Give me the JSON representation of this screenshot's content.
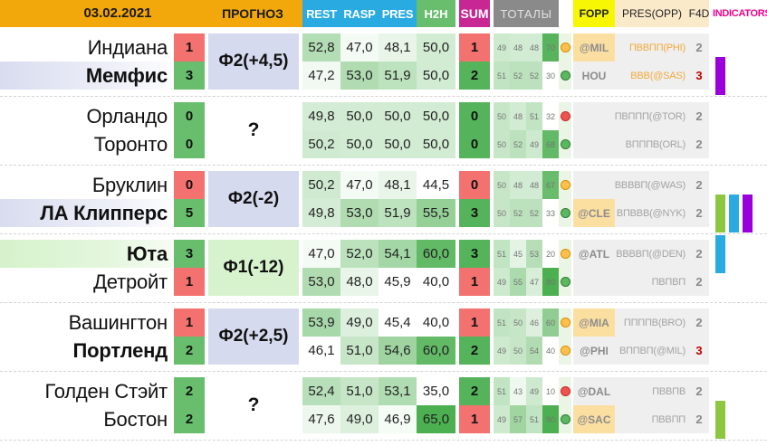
{
  "header": {
    "date": "03.02.2021",
    "forecast_label": "ПРОГНОЗ",
    "stat_columns": [
      "REST",
      "RASP",
      "PRES",
      "H2H"
    ],
    "sum_label": "SUM",
    "totals_label": "ТОТАЛЫ",
    "fopp_label": "FOPP",
    "pres_opp_label": "PRES(OPP)",
    "f4d_label": "F4D",
    "indicators_label": "INDICATORS"
  },
  "colors": {
    "headerYellow": "#F2A70A",
    "statCyan": "#29ABE2",
    "h2hGreen": "#69BE6E",
    "sumMagenta": "#C72693",
    "totalsGray": "#8A8A8A",
    "foppYellow": "#F7F704",
    "cream": "#FBEACA",
    "indMagenta": "#EC008C",
    "lavender": "#D6DAEE",
    "forecastGreen": "#D7F3CE",
    "panelGray": "#EFEFEF",
    "foppHl": "#FBDFA1",
    "circleStrip": "#EBF5E6",
    "badgeRed": "#F3716F",
    "badgeGreen": "#69BE6E",
    "sumRed": "#F3716F",
    "sumGreen": "#55B45B",
    "barGreen": "#8DC63F",
    "barCyan": "#29ABE2",
    "barPurple": "#9A00D9",
    "oppOrange": "#F2A93B"
  },
  "games": [
    {
      "forecast": "Ф2(+4,5)",
      "forecast_style": "lavender",
      "rows": [
        {
          "team": "Индиана",
          "bold": false,
          "name_bg": "none",
          "badge": "1",
          "badge_color": "red",
          "stats": [
            "52,8",
            "47,0",
            "48,1",
            "50,0"
          ],
          "sum": "1",
          "sum_color": "red",
          "totals": [
            49,
            48,
            48,
            70
          ],
          "circle": "orange",
          "fopp": "@MIL",
          "fopp_hl": true,
          "pres_opp": "ПВВПП(PHI)",
          "pres_opp_orange": true,
          "f4d": "2",
          "f4d_red": false,
          "bars": []
        },
        {
          "team": "Мемфис",
          "bold": true,
          "name_bg": "lavender",
          "badge": "3",
          "badge_color": "green",
          "stats": [
            "47,2",
            "53,0",
            "51,9",
            "50,0"
          ],
          "sum": "2",
          "sum_color": "green",
          "totals": [
            51,
            52,
            52,
            30
          ],
          "circle": "green",
          "fopp": "HOU",
          "fopp_hl": false,
          "pres_opp": "ВВВ(@SAS)",
          "pres_opp_orange": true,
          "f4d": "3",
          "f4d_red": true,
          "bars": [
            "purple"
          ]
        }
      ]
    },
    {
      "forecast": "?",
      "forecast_style": "plain",
      "rows": [
        {
          "team": "Орландо",
          "bold": false,
          "name_bg": "none",
          "badge": "0",
          "badge_color": "green",
          "stats": [
            "49,8",
            "50,0",
            "50,0",
            "50,0"
          ],
          "sum": "0",
          "sum_color": "green",
          "totals": [
            50,
            48,
            51,
            32
          ],
          "circle": "red",
          "fopp": "",
          "fopp_hl": false,
          "pres_opp": "ПВППП(@TOR)",
          "pres_opp_orange": false,
          "f4d": "2",
          "f4d_red": false,
          "bars": []
        },
        {
          "team": "Торонто",
          "bold": false,
          "name_bg": "none",
          "badge": "0",
          "badge_color": "green",
          "stats": [
            "50,2",
            "50,0",
            "50,0",
            "50,0"
          ],
          "sum": "0",
          "sum_color": "green",
          "totals": [
            50,
            52,
            49,
            68
          ],
          "circle": "green",
          "fopp": "",
          "fopp_hl": false,
          "pres_opp": "ВПППВ(ORL)",
          "pres_opp_orange": false,
          "f4d": "2",
          "f4d_red": false,
          "bars": []
        }
      ]
    },
    {
      "forecast": "Ф2(-2)",
      "forecast_style": "lavender",
      "rows": [
        {
          "team": "Бруклин",
          "bold": false,
          "name_bg": "none",
          "badge": "0",
          "badge_color": "red",
          "stats": [
            "50,2",
            "47,0",
            "48,1",
            "44,5"
          ],
          "sum": "0",
          "sum_color": "red",
          "totals": [
            50,
            48,
            48,
            67
          ],
          "circle": "orange",
          "fopp": "",
          "fopp_hl": false,
          "pres_opp": "ВВВВП(@WAS)",
          "pres_opp_orange": false,
          "f4d": "2",
          "f4d_red": false,
          "bars": []
        },
        {
          "team": "ЛА Клипперс",
          "bold": true,
          "name_bg": "lavender",
          "badge": "5",
          "badge_color": "green",
          "stats": [
            "49,8",
            "53,0",
            "51,9",
            "55,5"
          ],
          "sum": "3",
          "sum_color": "green",
          "totals": [
            50,
            52,
            52,
            33
          ],
          "circle": "green",
          "fopp": "@CLE",
          "fopp_hl": true,
          "pres_opp": "ВПВВВ(@NYK)",
          "pres_opp_orange": false,
          "f4d": "2",
          "f4d_red": false,
          "bars": [
            "green",
            "cyan",
            "purple"
          ]
        }
      ]
    },
    {
      "forecast": "Ф1(-12)",
      "forecast_style": "green",
      "rows": [
        {
          "team": "Юта",
          "bold": true,
          "name_bg": "green",
          "badge": "3",
          "badge_color": "green",
          "stats": [
            "47,0",
            "52,0",
            "54,1",
            "60,0"
          ],
          "sum": "3",
          "sum_color": "green",
          "totals": [
            51,
            45,
            53,
            20
          ],
          "circle": "orange",
          "fopp": "@ATL",
          "fopp_hl": false,
          "pres_opp": "ВВВВП(@DEN)",
          "pres_opp_orange": false,
          "f4d": "2",
          "f4d_red": false,
          "bars": [
            "cyan"
          ]
        },
        {
          "team": "Детройт",
          "bold": false,
          "name_bg": "none",
          "badge": "1",
          "badge_color": "red",
          "stats": [
            "53,0",
            "48,0",
            "45,9",
            "40,0"
          ],
          "sum": "1",
          "sum_color": "red",
          "totals": [
            49,
            55,
            47,
            80
          ],
          "circle": "green",
          "fopp": "",
          "fopp_hl": false,
          "pres_opp": "ПВПВП",
          "pres_opp_orange": false,
          "f4d": "2",
          "f4d_red": false,
          "bars": []
        }
      ]
    },
    {
      "forecast": "Ф2(+2,5)",
      "forecast_style": "lavender",
      "rows": [
        {
          "team": "Вашингтон",
          "bold": false,
          "name_bg": "none",
          "badge": "1",
          "badge_color": "red",
          "stats": [
            "53,9",
            "49,0",
            "45,4",
            "40,0"
          ],
          "sum": "1",
          "sum_color": "red",
          "totals": [
            51,
            50,
            46,
            60
          ],
          "circle": "orange",
          "fopp": "@MIA",
          "fopp_hl": true,
          "pres_opp": "ППППВ(BRO)",
          "pres_opp_orange": false,
          "f4d": "2",
          "f4d_red": false,
          "bars": []
        },
        {
          "team": "Портленд",
          "bold": true,
          "name_bg": "none",
          "badge": "2",
          "badge_color": "green",
          "stats": [
            "46,1",
            "51,0",
            "54,6",
            "60,0"
          ],
          "sum": "2",
          "sum_color": "green",
          "totals": [
            49,
            50,
            54,
            40
          ],
          "circle": "orange",
          "fopp": "@PHI",
          "fopp_hl": false,
          "pres_opp": "ВППВП(@MIL)",
          "pres_opp_orange": false,
          "f4d": "3",
          "f4d_red": true,
          "bars": []
        }
      ]
    },
    {
      "forecast": "?",
      "forecast_style": "plain",
      "rows": [
        {
          "team": "Голден Стэйт",
          "bold": false,
          "name_bg": "none",
          "badge": "2",
          "badge_color": "green",
          "stats": [
            "52,4",
            "51,0",
            "53,1",
            "35,0"
          ],
          "sum": "2",
          "sum_color": "green",
          "totals": [
            51,
            43,
            49,
            10
          ],
          "circle": "red",
          "fopp": "@DAL",
          "fopp_hl": false,
          "pres_opp": "ПВВПВ",
          "pres_opp_orange": false,
          "f4d": "2",
          "f4d_red": false,
          "bars": []
        },
        {
          "team": "Бостон",
          "bold": false,
          "name_bg": "none",
          "badge": "2",
          "badge_color": "green",
          "stats": [
            "47,6",
            "49,0",
            "46,9",
            "65,0"
          ],
          "sum": "1",
          "sum_color": "red",
          "totals": [
            49,
            57,
            51,
            90
          ],
          "circle": "green",
          "fopp": "@SAC",
          "fopp_hl": true,
          "pres_opp": "ПВВПП",
          "pres_opp_orange": false,
          "f4d": "2",
          "f4d_red": false,
          "bars": [
            "green"
          ]
        }
      ]
    }
  ]
}
